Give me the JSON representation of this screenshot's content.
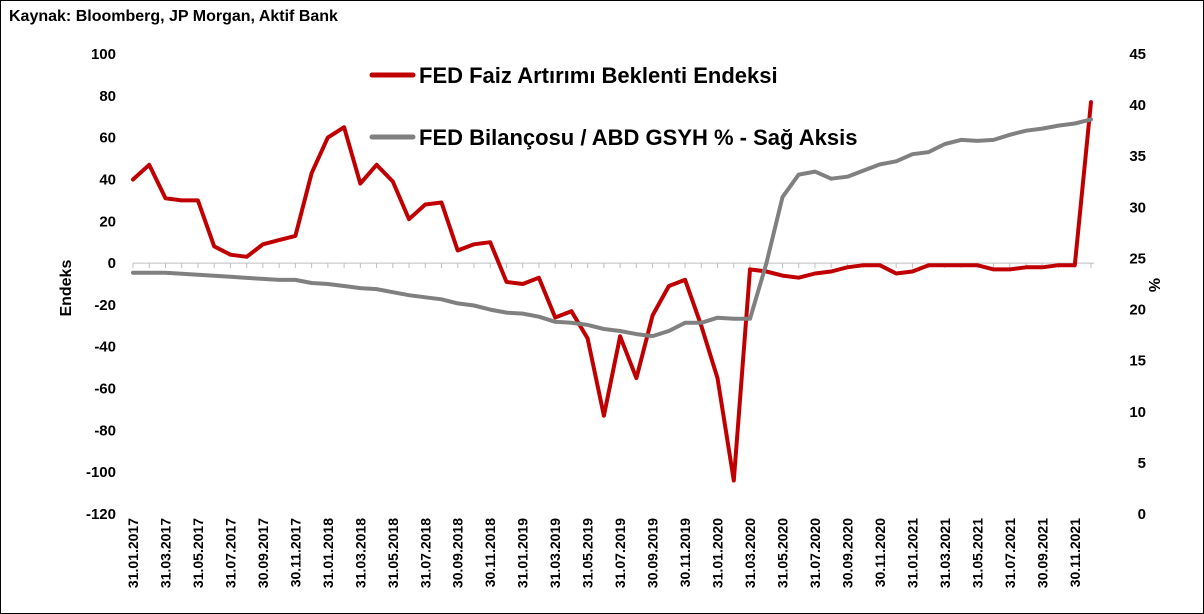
{
  "source": "Kaynak: Bloomberg, JP Morgan, Aktif Bank",
  "chart_data": {
    "type": "line",
    "ylabel": "Endeks",
    "y2label": "%",
    "ylim": [
      -120,
      100
    ],
    "y2lim": [
      0,
      45
    ],
    "yticks": [
      100,
      80,
      60,
      40,
      20,
      0,
      -20,
      -40,
      -60,
      -80,
      -100,
      -120
    ],
    "y2ticks": [
      45,
      40,
      35,
      30,
      25,
      20,
      15,
      10,
      5,
      0
    ],
    "x": [
      "31.01.2017",
      "28.02.2017",
      "31.03.2017",
      "30.04.2017",
      "31.05.2017",
      "30.06.2017",
      "31.07.2017",
      "31.08.2017",
      "30.09.2017",
      "31.10.2017",
      "30.11.2017",
      "31.12.2017",
      "31.01.2018",
      "28.02.2018",
      "31.03.2018",
      "30.04.2018",
      "31.05.2018",
      "30.06.2018",
      "31.07.2018",
      "31.08.2018",
      "30.09.2018",
      "31.10.2018",
      "30.11.2018",
      "31.12.2018",
      "31.01.2019",
      "28.02.2019",
      "31.03.2019",
      "30.04.2019",
      "31.05.2019",
      "30.06.2019",
      "31.07.2019",
      "31.08.2019",
      "30.09.2019",
      "31.10.2019",
      "30.11.2019",
      "31.12.2019",
      "31.01.2020",
      "29.02.2020",
      "31.03.2020",
      "30.04.2020",
      "31.05.2020",
      "30.06.2020",
      "31.07.2020",
      "31.08.2020",
      "30.09.2020",
      "31.10.2020",
      "30.11.2020",
      "31.12.2020",
      "31.01.2021",
      "28.02.2021",
      "31.03.2021",
      "30.04.2021",
      "31.05.2021",
      "30.06.2021",
      "31.07.2021",
      "31.08.2021",
      "30.09.2021",
      "31.10.2021",
      "30.11.2021",
      "31.12.2021"
    ],
    "xtick_labels": [
      "31.01.2017",
      "31.03.2017",
      "31.05.2017",
      "31.07.2017",
      "30.09.2017",
      "30.11.2017",
      "31.01.2018",
      "31.03.2018",
      "31.05.2018",
      "31.07.2018",
      "30.09.2018",
      "30.11.2018",
      "31.01.2019",
      "31.03.2019",
      "31.05.2019",
      "31.07.2019",
      "30.09.2019",
      "30.11.2019",
      "31.01.2020",
      "31.03.2020",
      "31.05.2020",
      "31.07.2020",
      "30.09.2020",
      "30.11.2020",
      "31.01.2021",
      "31.03.2021",
      "31.05.2021",
      "31.07.2021",
      "30.09.2021",
      "30.11.2021"
    ],
    "series": [
      {
        "name": "FED Faiz Artırımı Beklenti Endeksi",
        "axis": "left",
        "color": "#c00000",
        "values": [
          40,
          47,
          31,
          30,
          30,
          8,
          4,
          3,
          9,
          11,
          13,
          43,
          60,
          65,
          38,
          47,
          39,
          21,
          28,
          29,
          6,
          9,
          10,
          -9,
          -10,
          -7,
          -26,
          -23,
          -36,
          -73,
          -35,
          -55,
          -25,
          -11,
          -8,
          -30,
          -55,
          -104,
          -3,
          -4,
          -6,
          -7,
          -5,
          -4,
          -2,
          -1,
          -1,
          -5,
          -4,
          -1,
          -1,
          -1,
          -1,
          -3,
          -3,
          -2,
          -2,
          -1,
          -1,
          77
        ]
      },
      {
        "name": "FED Bilançosu / ABD GSYH % - Sağ Aksis",
        "axis": "right",
        "color": "#808080",
        "values": [
          23.6,
          23.6,
          23.6,
          23.5,
          23.4,
          23.3,
          23.2,
          23.1,
          23.0,
          22.9,
          22.9,
          22.6,
          22.5,
          22.3,
          22.1,
          22.0,
          21.7,
          21.4,
          21.2,
          21.0,
          20.6,
          20.4,
          20.0,
          19.7,
          19.6,
          19.3,
          18.8,
          18.7,
          18.5,
          18.1,
          17.9,
          17.6,
          17.4,
          17.9,
          18.7,
          18.7,
          19.2,
          19.1,
          19.1,
          24.5,
          31.0,
          33.2,
          33.5,
          32.8,
          33.0,
          33.6,
          34.2,
          34.5,
          35.2,
          35.4,
          36.2,
          36.6,
          36.5,
          36.6,
          37.1,
          37.5,
          37.7,
          38.0,
          38.2,
          38.6
        ]
      }
    ]
  }
}
